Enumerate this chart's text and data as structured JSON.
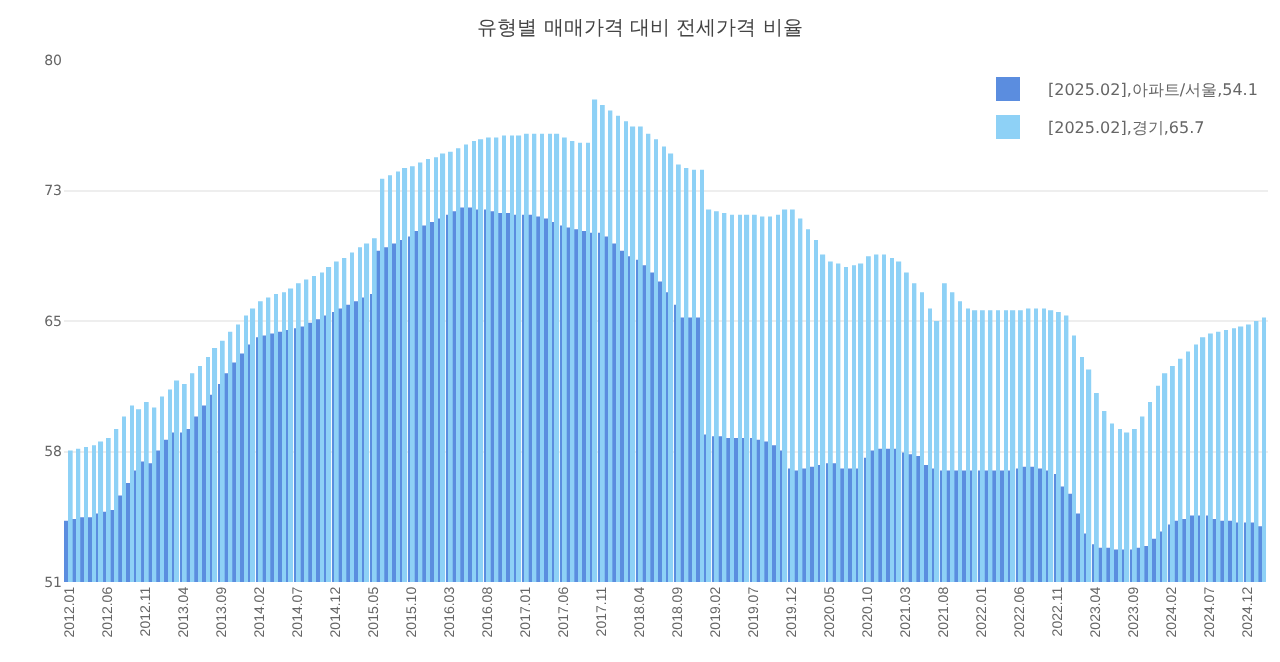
{
  "chart_data": {
    "type": "bar",
    "title": "유형별 매매가격 대비 전세가격 비율",
    "categories": [
      "2012.01",
      null,
      null,
      null,
      null,
      "2012.06",
      null,
      null,
      null,
      null,
      "2012.11",
      null,
      null,
      null,
      null,
      "2013.04",
      null,
      null,
      null,
      null,
      "2013.09",
      null,
      null,
      null,
      null,
      "2014.02",
      null,
      null,
      null,
      null,
      "2014.07",
      null,
      null,
      null,
      null,
      "2014.12",
      null,
      null,
      null,
      null,
      "2015.05",
      null,
      null,
      null,
      null,
      "2015.10",
      null,
      null,
      null,
      null,
      "2016.03",
      null,
      null,
      null,
      null,
      "2016.08",
      null,
      null,
      null,
      null,
      "2017.01",
      null,
      null,
      null,
      null,
      "2017.06",
      null,
      null,
      null,
      null,
      "2017.11",
      null,
      null,
      null,
      null,
      "2018.04",
      null,
      null,
      null,
      null,
      "2018.09",
      null,
      null,
      null,
      null,
      "2019.02",
      null,
      null,
      null,
      null,
      "2019.07",
      null,
      null,
      null,
      null,
      "2019.12",
      null,
      null,
      null,
      null,
      "2020.05",
      null,
      null,
      null,
      null,
      "2020.10",
      null,
      null,
      null,
      null,
      "2021.03",
      null,
      null,
      null,
      null,
      "2021.08",
      null,
      null,
      null,
      null,
      "2022.01",
      null,
      null,
      null,
      null,
      "2022.06",
      null,
      null,
      null,
      null,
      "2022.11",
      null,
      null,
      null,
      null,
      "2023.04",
      null,
      null,
      null,
      null,
      "2023.09",
      null,
      null,
      null,
      null,
      "2024.02",
      null,
      null,
      null,
      null,
      "2024.07",
      null,
      null,
      null,
      null,
      "2024.12",
      null,
      null
    ],
    "series": [
      {
        "name": "[2025.02],아파트/서울,54.1",
        "color": "#5b8ddf",
        "values": [
          54.4,
          54.5,
          54.6,
          54.6,
          54.8,
          54.9,
          55.0,
          55.8,
          56.5,
          57.2,
          57.7,
          57.6,
          58.3,
          58.9,
          59.3,
          59.3,
          59.5,
          60.2,
          60.8,
          61.4,
          62.0,
          62.6,
          63.2,
          63.7,
          64.2,
          64.6,
          64.7,
          64.8,
          64.9,
          65.0,
          65.1,
          65.2,
          65.4,
          65.6,
          65.8,
          66.0,
          66.2,
          66.4,
          66.6,
          66.8,
          67.0,
          69.4,
          69.6,
          69.8,
          70.0,
          70.2,
          70.5,
          70.8,
          71.0,
          71.2,
          71.4,
          71.6,
          71.8,
          71.8,
          71.7,
          71.7,
          71.6,
          71.5,
          71.5,
          71.4,
          71.4,
          71.4,
          71.3,
          71.2,
          71.0,
          70.8,
          70.7,
          70.6,
          70.5,
          70.4,
          70.4,
          70.2,
          69.8,
          69.4,
          69.1,
          68.9,
          68.6,
          68.2,
          67.7,
          67.1,
          66.4,
          65.7,
          65.7,
          65.7,
          59.2,
          59.1,
          59.1,
          59.0,
          59.0,
          59.0,
          59.0,
          58.9,
          58.8,
          58.6,
          58.3,
          57.3,
          57.2,
          57.3,
          57.4,
          57.5,
          57.6,
          57.6,
          57.3,
          57.3,
          57.3,
          57.9,
          58.3,
          58.4,
          58.4,
          58.4,
          58.2,
          58.1,
          58.0,
          57.5,
          57.3,
          57.2,
          57.2,
          57.2,
          57.2,
          57.2,
          57.2,
          57.2,
          57.2,
          57.2,
          57.2,
          57.3,
          57.4,
          57.4,
          57.3,
          57.2,
          57.0,
          56.3,
          55.9,
          54.8,
          53.7,
          53.1,
          52.9,
          52.9,
          52.8,
          52.8,
          52.8,
          52.9,
          53.0,
          53.4,
          53.8,
          54.2,
          54.4,
          54.5,
          54.7,
          54.7,
          54.7,
          54.5,
          54.4,
          54.4,
          54.3,
          54.3,
          54.3,
          54.1
        ]
      },
      {
        "name": "[2025.02],경기,65.7",
        "color": "#8ed1f6",
        "values": [
          58.3,
          58.4,
          58.5,
          58.6,
          58.8,
          59.0,
          59.5,
          60.2,
          60.8,
          60.6,
          61.0,
          60.7,
          61.3,
          61.7,
          62.2,
          62.0,
          62.6,
          63.0,
          63.5,
          64.0,
          64.4,
          64.9,
          65.3,
          65.8,
          66.2,
          66.6,
          66.8,
          67.0,
          67.1,
          67.3,
          67.6,
          67.8,
          68.0,
          68.2,
          68.5,
          68.8,
          69.0,
          69.3,
          69.6,
          69.8,
          70.1,
          73.4,
          73.6,
          73.8,
          74.0,
          74.1,
          74.3,
          74.5,
          74.6,
          74.8,
          74.9,
          75.1,
          75.3,
          75.5,
          75.6,
          75.7,
          75.7,
          75.8,
          75.8,
          75.8,
          75.9,
          75.9,
          75.9,
          75.9,
          75.9,
          75.7,
          75.5,
          75.4,
          75.4,
          77.8,
          77.5,
          77.2,
          76.9,
          76.6,
          76.3,
          76.3,
          75.9,
          75.6,
          75.2,
          74.8,
          74.2,
          74.0,
          73.9,
          73.9,
          71.7,
          71.6,
          71.5,
          71.4,
          71.4,
          71.4,
          71.4,
          71.3,
          71.3,
          71.4,
          71.7,
          71.7,
          71.2,
          70.6,
          70.0,
          69.2,
          68.8,
          68.7,
          68.5,
          68.6,
          68.7,
          69.1,
          69.2,
          69.2,
          69.0,
          68.8,
          68.2,
          67.6,
          67.1,
          66.2,
          65.5,
          67.6,
          67.1,
          66.6,
          66.2,
          66.1,
          66.1,
          66.1,
          66.1,
          66.1,
          66.1,
          66.1,
          66.2,
          66.2,
          66.2,
          66.1,
          66.0,
          65.8,
          64.7,
          63.5,
          62.8,
          61.5,
          60.5,
          59.8,
          59.5,
          59.3,
          59.5,
          60.2,
          61.0,
          61.9,
          62.6,
          63.0,
          63.4,
          63.8,
          64.2,
          64.6,
          64.8,
          64.9,
          65.0,
          65.1,
          65.2,
          65.3,
          65.5,
          65.7
        ]
      }
    ],
    "ylim": [
      51,
      80
    ],
    "yticks": [
      51,
      {
        "value": 58.25,
        "label": "58"
      },
      {
        "value": 65.5,
        "label": "65"
      },
      {
        "value": 72.75,
        "label": "73"
      },
      80
    ],
    "grid": "y",
    "legend": "top right"
  }
}
